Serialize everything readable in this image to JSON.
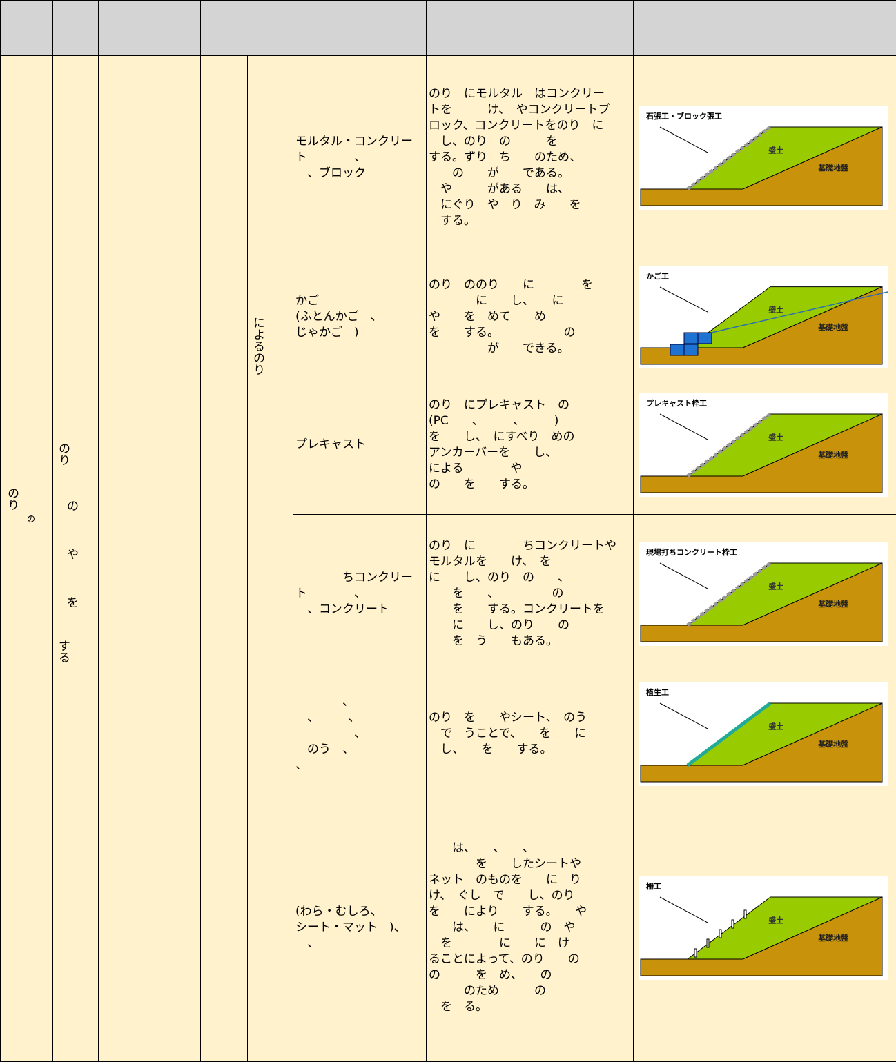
{
  "table": {
    "col_a": {
      "main": "のり",
      "small": "の"
    },
    "col_b": [
      "のり",
      "の",
      "や",
      "を",
      "する"
    ],
    "col_e": "によるのり",
    "rows": [
      {
        "name": "モルタル・コンクリー\nト　　　　、\n　、ブロック",
        "description": "のり　にモルタル　はコンクリー\nトを　　　け、　やコンクリートブ\nロック、コンクリートをのり　に\n　し、のり　の　　　を\nする。ずり　ち　　のため、\n　　の　　が　　である。\n　や　　　がある　　は、\n　にぐり　や　り　み　　を\n　する。",
        "figure": {
          "caption": "石張工・ブロック張工",
          "fill": "盛土",
          "base": "基礎地盤",
          "kind": "block"
        }
      },
      {
        "name": "かご\n(ふとんかご　、\nじゃかご　)",
        "description": "のり　ののり　　に　　　　を\n　　　　に　　し、　　に\nや　　を　めて　　め\nを　　する。　　　　　　の\n　　　　　が　　できる。",
        "figure": {
          "caption": "かご工",
          "fill": "盛土",
          "base": "基礎地盤",
          "kind": "gabion"
        }
      },
      {
        "name": "プレキャスト",
        "description": "のり　にプレキャスト　の\n(PC　　、　　　、　　　)\nを　　し、　にすべり　めの\nアンカーバーを　　し、\nによる　　　　や\nの　　を　　する。",
        "figure": {
          "caption": "プレキャスト枠工",
          "fill": "盛土",
          "base": "基礎地盤",
          "kind": "frame"
        }
      },
      {
        "name": "　　　　ちコンクリー\nト　　　　、\n　、コンクリート",
        "description": "のり　に　　　　ちコンクリートや\nモルタルを　　け、　を\nに　　し、のり　の　　、\n　　を　　、　　　　　の\n　　を　　する。コンクリートを\n　　に　　し、のり　　の\n　　を　う　　もある。",
        "figure": {
          "caption": "現場打ちコンクリート枠工",
          "fill": "盛土",
          "base": "基礎地盤",
          "kind": "frame"
        }
      },
      {
        "name": "　　　　、\n　、　　　、\n　　　　　、\n　のう　、\n、",
        "description": "のり　を　　やシート、　のう\n　で　うことで、　　を　　に\n　し、　　を　　する。",
        "figure": {
          "caption": "植生工",
          "fill": "盛土",
          "base": "基礎地盤",
          "kind": "veg"
        }
      },
      {
        "name": "(わら・むしろ、\nシート・マット　)、\n　、",
        "description": "　　は、　　、　　、\n　　　　を　　したシートや\nネット　のものを　　に　り\nけ、　ぐし　で　　し、のり\nを　　により　　する。　　や\n　　は、　　に　　　の　や\n　を　　　　に　　に　け\nることによって、のり　　の\nの　　　を　め、　　の\n　　　のため　　　の\n　を　る。",
        "figure": {
          "caption": "柵工",
          "fill": "盛土",
          "base": "基礎地盤",
          "kind": "fence"
        }
      }
    ]
  }
}
